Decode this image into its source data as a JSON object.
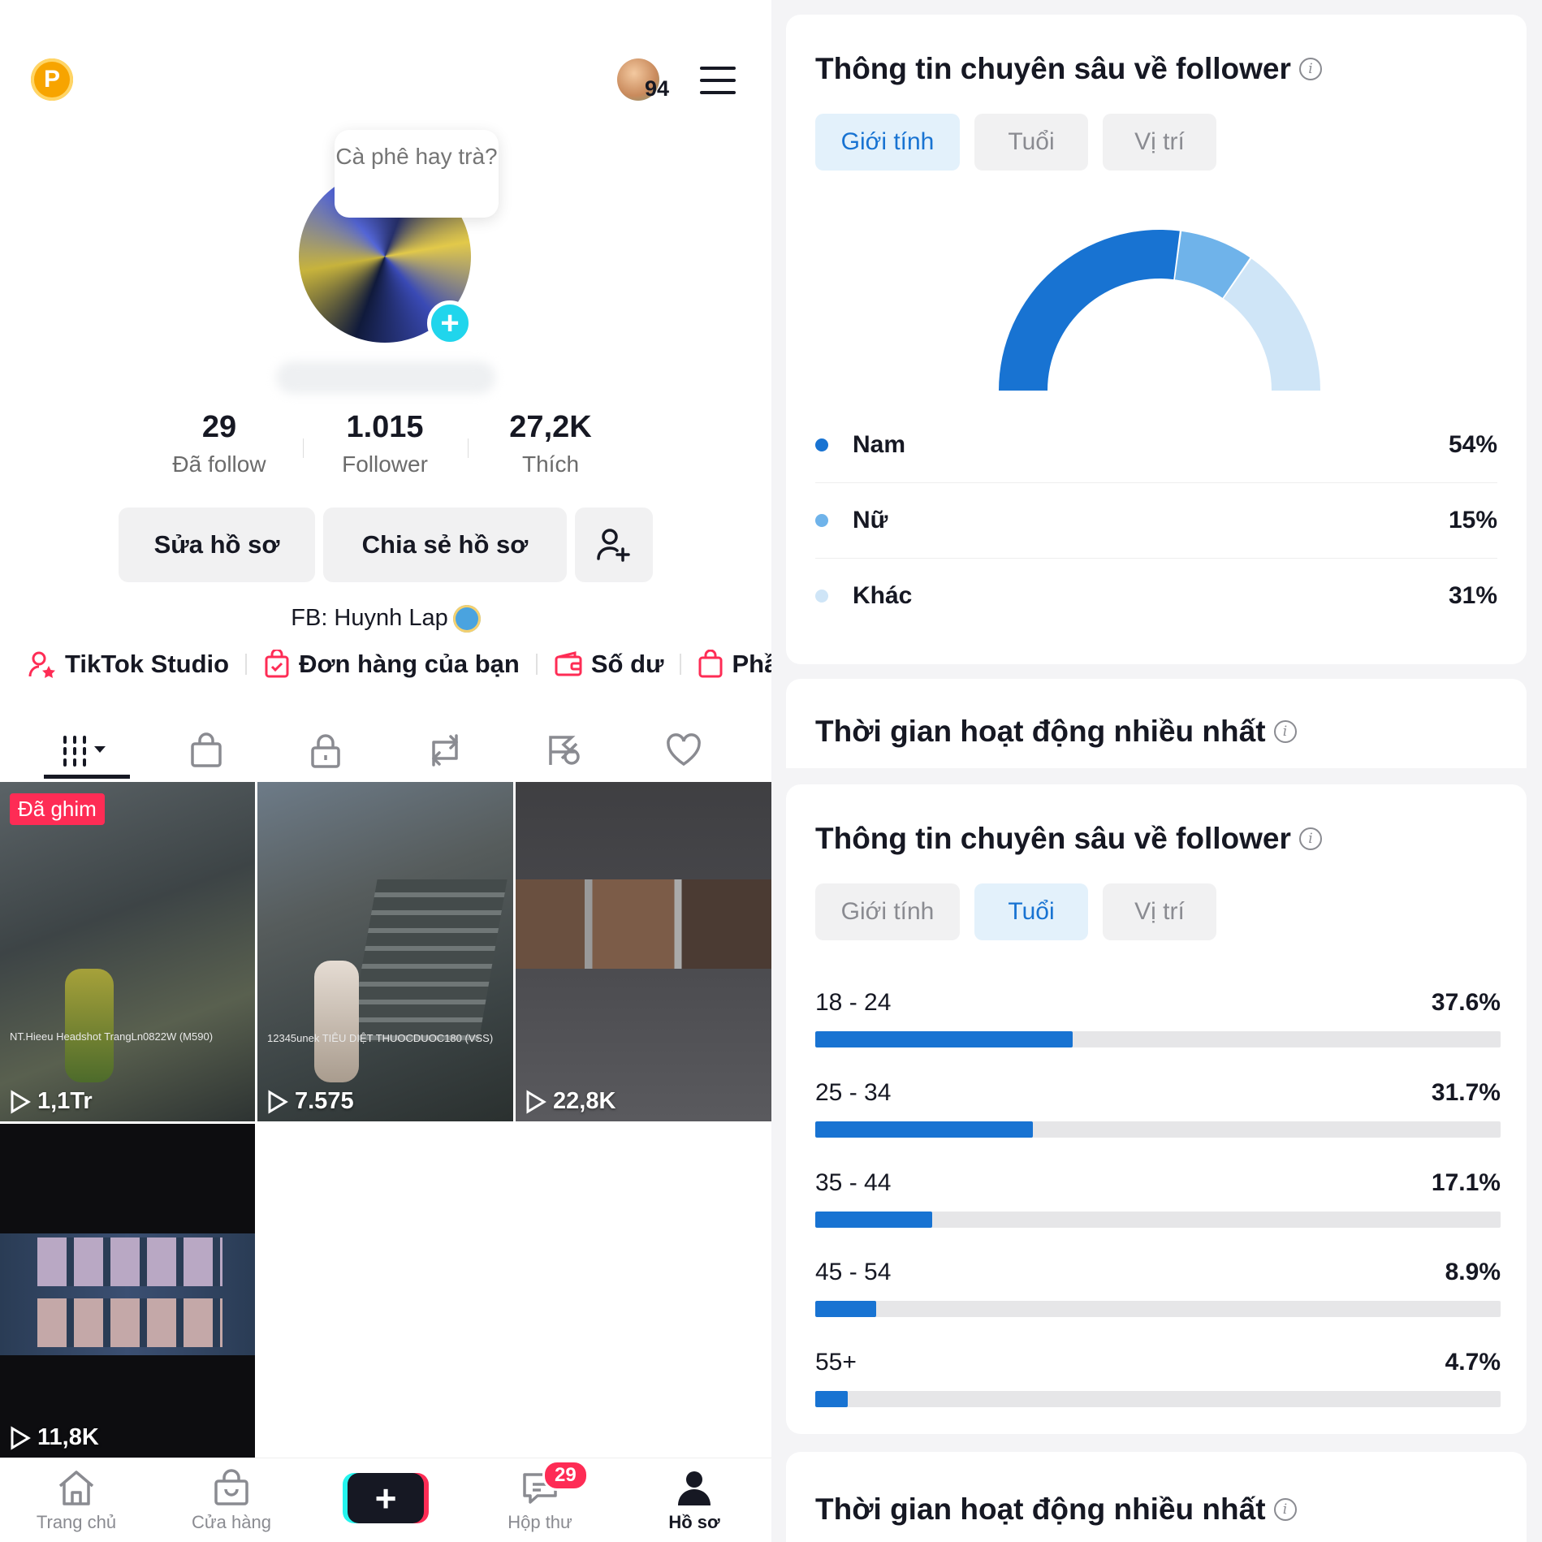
{
  "profile": {
    "coin_label": "P",
    "friends_count": "94",
    "bubble_text": "Cà phê hay trà?",
    "stats": [
      {
        "value": "29",
        "label": "Đã follow"
      },
      {
        "value": "1.015",
        "label": "Follower"
      },
      {
        "value": "27,2K",
        "label": "Thích"
      }
    ],
    "edit_button": "Sửa hồ sơ",
    "share_button": "Chia sẻ hồ sơ",
    "bio": "FB: Huynh Lap",
    "links": {
      "studio": "TikTok Studio",
      "orders": "Đơn hàng của bạn",
      "balance": "Số dư",
      "more": "Phần"
    }
  },
  "videos": [
    {
      "views": "1,1Tr",
      "pinned_label": "Đã ghim",
      "overlay": "NT.Hieeu  Headshot  TrangLn0822W  (M590)"
    },
    {
      "views": "7.575",
      "overlay": "12345unek  TIÊU DIỆT  THUOCDUOC180  (VSS)"
    },
    {
      "views": "22,8K"
    },
    {
      "views": "11,8K"
    }
  ],
  "nav": {
    "home": "Trang chủ",
    "shop": "Cửa hàng",
    "inbox": "Hộp thư",
    "inbox_badge": "29",
    "profile": "Hồ sơ"
  },
  "insights": {
    "gender_card": {
      "title": "Thông tin chuyên sâu về follower",
      "tabs": [
        "Giới tính",
        "Tuổi",
        "Vị trí"
      ],
      "active_tab": "Giới tính",
      "legend": [
        {
          "name": "Nam",
          "pct": "54%",
          "color": "#1873d2"
        },
        {
          "name": "Nữ",
          "pct": "15%",
          "color": "#6fb3ea"
        },
        {
          "name": "Khác",
          "pct": "31%",
          "color": "#cfe5f7"
        }
      ]
    },
    "active_time_title": "Thời gian hoạt động nhiều nhất",
    "age_card": {
      "title": "Thông tin chuyên sâu về follower",
      "tabs": [
        "Giới tính",
        "Tuổi",
        "Vị trí"
      ],
      "active_tab": "Tuổi",
      "rows": [
        {
          "range": "18 - 24",
          "pct": "37.6%",
          "value": 37.6
        },
        {
          "range": "25 - 34",
          "pct": "31.7%",
          "value": 31.7
        },
        {
          "range": "35 - 44",
          "pct": "17.1%",
          "value": 17.1
        },
        {
          "range": "45 - 54",
          "pct": "8.9%",
          "value": 8.9
        },
        {
          "range": "55+",
          "pct": "4.7%",
          "value": 4.7
        }
      ]
    },
    "active_time_title_2": "Thời gian hoạt động nhiều nhất"
  },
  "chart_data": [
    {
      "type": "pie",
      "categories": [
        "Nam",
        "Nữ",
        "Khác"
      ],
      "values": [
        54,
        15,
        31
      ],
      "colors": [
        "#1873d2",
        "#6fb3ea",
        "#cfe5f7"
      ]
    },
    {
      "type": "bar",
      "categories": [
        "18 - 24",
        "25 - 34",
        "35 - 44",
        "45 - 54",
        "55+"
      ],
      "values": [
        37.6,
        31.7,
        17.1,
        8.9,
        4.7
      ]
    }
  ]
}
